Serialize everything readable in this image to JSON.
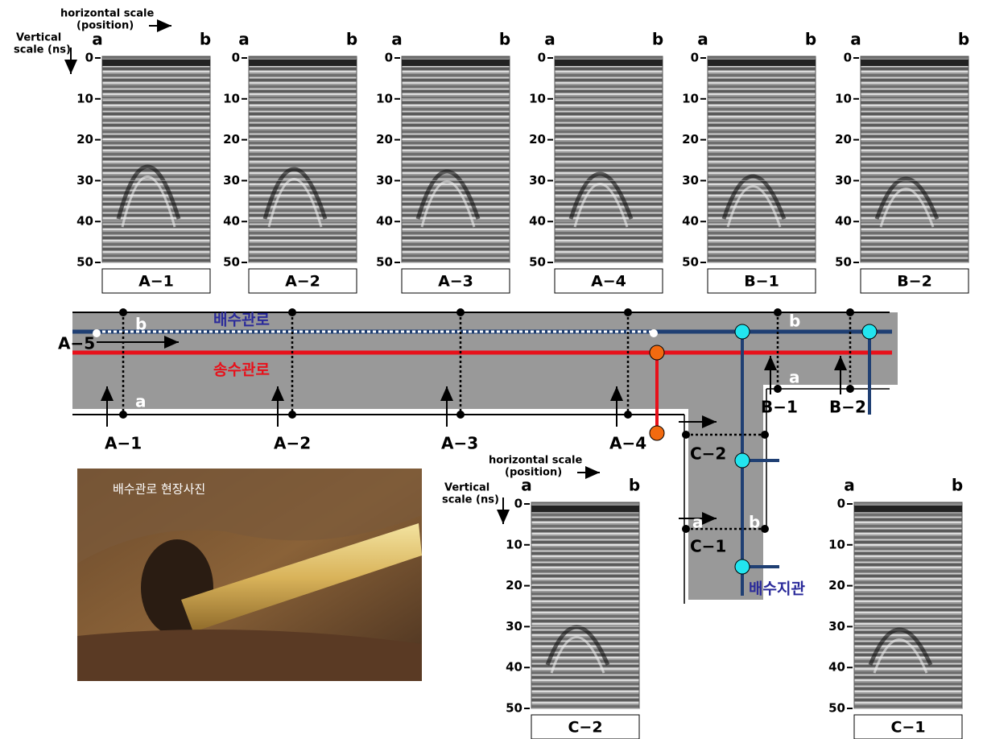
{
  "scale_labels": {
    "horizontal": [
      "horizontal scale",
      "(position)"
    ],
    "vertical": [
      "Vertical",
      "scale (ns)"
    ],
    "start": "a",
    "end": "b"
  },
  "depth_ticks": [
    0,
    10,
    20,
    30,
    40,
    50
  ],
  "panels": [
    {
      "label": "A−1"
    },
    {
      "label": "A−2"
    },
    {
      "label": "A−3"
    },
    {
      "label": "A−4"
    },
    {
      "label": "B−1"
    },
    {
      "label": "B−2"
    },
    {
      "label": "C−2"
    },
    {
      "label": "C−1"
    }
  ],
  "map": {
    "main_pipe": "배수관로",
    "transmission_pipe": "송수관로",
    "branch_pipe": "배수지관",
    "extra_section": "A−5"
  },
  "photo": {
    "caption": "배수관로 현장사진"
  }
}
